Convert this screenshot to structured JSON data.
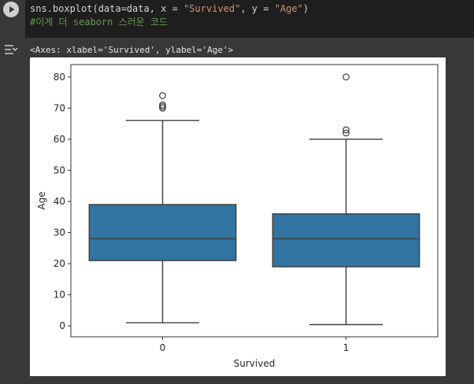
{
  "cell": {
    "code_parts": [
      "sns.boxplot(data=data, x = ",
      "\"Survived\"",
      ", y = ",
      "\"Age\"",
      ")"
    ],
    "comment": "#이게 더 seaborn 스러운 코드",
    "output_repr": "<Axes: xlabel='Survived', ylabel='Age'>"
  },
  "icons": {
    "run": "play-circle-icon",
    "output_toggle": "output-collapse-icon"
  },
  "chart_data": {
    "type": "box",
    "xlabel": "Survived",
    "ylabel": "Age",
    "categories": [
      "0",
      "1"
    ],
    "ylim": [
      -3.5,
      84
    ],
    "yticks": [
      0,
      10,
      20,
      30,
      40,
      50,
      60,
      70,
      80
    ],
    "grid": false,
    "box_color": "#3274a1",
    "edge_color": "#3d3d3d",
    "boxes": [
      {
        "category": "0",
        "whisker_low": 1,
        "q1": 21,
        "median": 28,
        "q3": 39,
        "whisker_high": 66,
        "outliers": [
          70,
          70.5,
          71,
          74
        ]
      },
      {
        "category": "1",
        "whisker_low": 0.42,
        "q1": 19,
        "median": 28,
        "q3": 36,
        "whisker_high": 60,
        "outliers": [
          62,
          63,
          80
        ]
      }
    ]
  }
}
